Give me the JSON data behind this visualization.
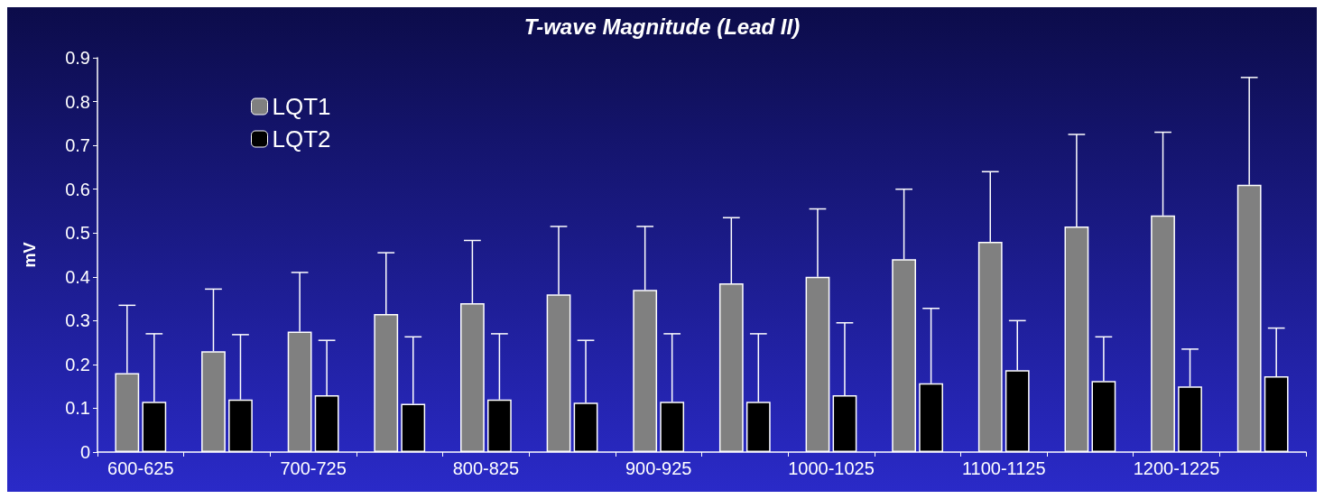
{
  "chart_data": {
    "type": "bar",
    "title": "T-wave Magnitude (Lead II)",
    "ylabel": "mV",
    "categories": [
      "600-625",
      null,
      "700-725",
      null,
      "800-825",
      null,
      "900-925",
      null,
      "1000-1025",
      null,
      "1100-1125",
      null,
      "1200-1225",
      null
    ],
    "series": [
      {
        "name": "LQT1",
        "color": "#808080",
        "values": [
          0.18,
          0.23,
          0.275,
          0.315,
          0.34,
          0.36,
          0.37,
          0.385,
          0.4,
          0.44,
          0.48,
          0.515,
          0.54,
          0.61
        ],
        "errors": [
          [
            0.18,
            0.335
          ],
          [
            0.23,
            0.372
          ],
          [
            0.275,
            0.41
          ],
          [
            0.315,
            0.455
          ],
          [
            0.34,
            0.483
          ],
          [
            0.36,
            0.515
          ],
          [
            0.37,
            0.515
          ],
          [
            0.385,
            0.535
          ],
          [
            0.4,
            0.555
          ],
          [
            0.44,
            0.6
          ],
          [
            0.48,
            0.64
          ],
          [
            0.515,
            0.725
          ],
          [
            0.54,
            0.73
          ],
          [
            0.61,
            0.855
          ]
        ]
      },
      {
        "name": "LQT2",
        "color": "#000000",
        "values": [
          0.115,
          0.12,
          0.13,
          0.11,
          0.12,
          0.113,
          0.115,
          0.115,
          0.13,
          0.157,
          0.187,
          0.162,
          0.15,
          0.173
        ],
        "errors": [
          [
            0.115,
            0.27
          ],
          [
            0.12,
            0.268
          ],
          [
            0.13,
            0.255
          ],
          [
            0.11,
            0.263
          ],
          [
            0.12,
            0.27
          ],
          [
            0.113,
            0.255
          ],
          [
            0.115,
            0.27
          ],
          [
            0.115,
            0.27
          ],
          [
            0.13,
            0.295
          ],
          [
            0.157,
            0.328
          ],
          [
            0.187,
            0.3
          ],
          [
            0.162,
            0.263
          ],
          [
            0.15,
            0.235
          ],
          [
            0.173,
            0.283
          ]
        ]
      }
    ],
    "ylim": [
      0,
      0.9
    ],
    "yticks": [
      0,
      0.1,
      0.2,
      0.3,
      0.4,
      0.5,
      0.6,
      0.7,
      0.8,
      0.9
    ],
    "grid": false,
    "legend": "top left"
  }
}
